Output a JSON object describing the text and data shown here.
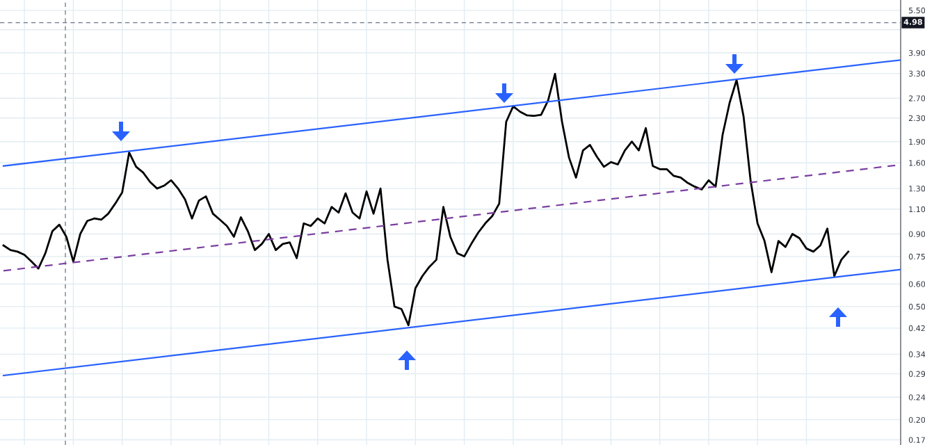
{
  "chart_data": {
    "type": "line",
    "log": "y",
    "grid": true,
    "tick_labels": "y",
    "marker": "none",
    "line_style": "solid",
    "categories": [
      null,
      null,
      null,
      null,
      null,
      null,
      null,
      null,
      null,
      null,
      null,
      null,
      null,
      null,
      null,
      null,
      null,
      null,
      null,
      null,
      null,
      null,
      null,
      null,
      null,
      null,
      null,
      null,
      null,
      null,
      null,
      null,
      null,
      null,
      null,
      null,
      null,
      null,
      null,
      null,
      null,
      null,
      null,
      null,
      null,
      null,
      null,
      null,
      null,
      null,
      null,
      null,
      null,
      null,
      null,
      null,
      null,
      null,
      null,
      null,
      null,
      null,
      null,
      null,
      null,
      null,
      null,
      null,
      null,
      null,
      null,
      null,
      null,
      null,
      null,
      null,
      null,
      null,
      null,
      null,
      null,
      null,
      null,
      null,
      null,
      null,
      null,
      null,
      null,
      null,
      null,
      null,
      null,
      null,
      null,
      null,
      null,
      null,
      null,
      null,
      null,
      null,
      null,
      null,
      null,
      null,
      null,
      null,
      null,
      null,
      null,
      null,
      null,
      null,
      null,
      null,
      null,
      null,
      null,
      null,
      null,
      null
    ],
    "ylim": [
      0.163,
      5.98
    ],
    "yticks": [
      {
        "value": 0.17,
        "label": "0.17"
      },
      {
        "value": 0.2,
        "label": "0.20"
      },
      {
        "value": 0.24,
        "label": "0.24"
      },
      {
        "value": 0.29,
        "label": "0.29"
      },
      {
        "value": 0.34,
        "label": "0.34"
      },
      {
        "value": 0.42,
        "label": "0.42"
      },
      {
        "value": 0.5,
        "label": "0.50"
      },
      {
        "value": 0.6,
        "label": "0.60"
      },
      {
        "value": 0.75,
        "label": "0.75"
      },
      {
        "value": 0.9,
        "label": "0.90"
      },
      {
        "value": 1.1,
        "label": "1.10"
      },
      {
        "value": 1.3,
        "label": "1.30"
      },
      {
        "value": 1.6,
        "label": "1.60"
      },
      {
        "value": 1.9,
        "label": "1.90"
      },
      {
        "value": 2.3,
        "label": "2.30"
      },
      {
        "value": 2.7,
        "label": "2.70"
      },
      {
        "value": 3.3,
        "label": "3.30"
      },
      {
        "value": 3.9,
        "label": "3.90"
      },
      {
        "value": 4.7,
        "label": null
      },
      {
        "value": 5.5,
        "label": "5.50"
      }
    ],
    "series": [
      {
        "color": "#000000",
        "values": [
          0.82,
          0.79,
          0.78,
          0.76,
          0.72,
          0.68,
          0.77,
          0.92,
          0.97,
          0.88,
          0.72,
          0.9,
          1.0,
          1.02,
          1.01,
          1.06,
          1.15,
          1.26,
          1.74,
          1.55,
          1.48,
          1.37,
          1.3,
          1.33,
          1.39,
          1.3,
          1.19,
          1.02,
          1.18,
          1.22,
          1.06,
          1.01,
          0.96,
          0.88,
          1.03,
          0.92,
          0.79,
          0.83,
          0.9,
          0.79,
          0.83,
          0.84,
          0.74,
          0.98,
          0.96,
          1.02,
          0.98,
          1.12,
          1.07,
          1.25,
          1.07,
          1.02,
          1.27,
          1.06,
          1.3,
          0.73,
          0.5,
          0.49,
          0.43,
          0.58,
          0.64,
          0.69,
          0.73,
          1.12,
          0.88,
          0.77,
          0.75,
          0.83,
          0.91,
          0.98,
          1.04,
          1.15,
          2.23,
          2.53,
          2.42,
          2.35,
          2.34,
          2.36,
          2.65,
          3.29,
          2.23,
          1.67,
          1.42,
          1.77,
          1.85,
          1.68,
          1.55,
          1.61,
          1.58,
          1.77,
          1.9,
          1.77,
          2.12,
          1.56,
          1.52,
          1.52,
          1.44,
          1.42,
          1.36,
          1.32,
          1.29,
          1.39,
          1.32,
          2.01,
          2.6,
          3.13,
          2.33,
          1.39,
          0.98,
          0.85,
          0.66,
          0.85,
          0.81,
          0.9,
          0.87,
          0.8,
          0.78,
          0.82,
          0.94,
          0.64,
          0.73,
          0.78
        ]
      },
      {
        "color": "#2962ff",
        "values": [
          1.56,
          null,
          null,
          null,
          null,
          null,
          null,
          null,
          null,
          null,
          null,
          null,
          null,
          null,
          null,
          null,
          null,
          null,
          null,
          null,
          null,
          null,
          null,
          null,
          null,
          null,
          null,
          null,
          null,
          null,
          null,
          null,
          null,
          null,
          null,
          null,
          null,
          null,
          null,
          null,
          null,
          null,
          null,
          null,
          null,
          null,
          null,
          null,
          null,
          null,
          null,
          null,
          null,
          null,
          null,
          null,
          null,
          null,
          null,
          null,
          null,
          null,
          null,
          null,
          null,
          null,
          null,
          null,
          null,
          null,
          null,
          null,
          null,
          null,
          null,
          null,
          null,
          null,
          null,
          null,
          null,
          null,
          null,
          null,
          null,
          null,
          null,
          null,
          null,
          null,
          null,
          null,
          null,
          null,
          null,
          null,
          null,
          null,
          null,
          null,
          null,
          null,
          null,
          null,
          null,
          null,
          null,
          null,
          null,
          null,
          null,
          null,
          null,
          null,
          null,
          null,
          null,
          null,
          null,
          null,
          null,
          3.5
        ]
      },
      {
        "color": "#2962ff",
        "values": [
          0.286,
          null,
          null,
          null,
          null,
          null,
          null,
          null,
          null,
          null,
          null,
          null,
          null,
          null,
          null,
          null,
          null,
          null,
          null,
          null,
          null,
          null,
          null,
          null,
          null,
          null,
          null,
          null,
          null,
          null,
          null,
          null,
          null,
          null,
          null,
          null,
          null,
          null,
          null,
          null,
          null,
          null,
          null,
          null,
          null,
          null,
          null,
          null,
          null,
          null,
          null,
          null,
          null,
          null,
          null,
          null,
          null,
          null,
          null,
          null,
          null,
          null,
          null,
          null,
          null,
          null,
          null,
          null,
          null,
          null,
          null,
          null,
          null,
          null,
          null,
          null,
          null,
          null,
          null,
          null,
          null,
          null,
          null,
          null,
          null,
          null,
          null,
          null,
          null,
          null,
          null,
          null,
          null,
          null,
          null,
          null,
          null,
          null,
          null,
          null,
          null,
          null,
          null,
          null,
          null,
          null,
          null,
          null,
          null,
          null,
          null,
          null,
          null,
          null,
          null,
          null,
          null,
          null,
          null,
          null,
          null,
          0.642
        ]
      },
      {
        "color": "#7b3fa0",
        "line_style": "dashed",
        "values": [
          0.668,
          null,
          null,
          null,
          null,
          null,
          null,
          null,
          null,
          null,
          null,
          null,
          null,
          null,
          null,
          null,
          null,
          null,
          null,
          null,
          null,
          null,
          null,
          null,
          null,
          null,
          null,
          null,
          null,
          null,
          null,
          null,
          null,
          null,
          null,
          null,
          null,
          null,
          null,
          null,
          null,
          null,
          null,
          null,
          null,
          null,
          null,
          null,
          null,
          null,
          null,
          null,
          null,
          null,
          null,
          null,
          null,
          null,
          null,
          null,
          null,
          null,
          null,
          null,
          null,
          null,
          null,
          null,
          null,
          null,
          null,
          null,
          null,
          null,
          null,
          null,
          null,
          null,
          null,
          null,
          null,
          null,
          null,
          null,
          null,
          null,
          null,
          null,
          null,
          null,
          null,
          null,
          null,
          null,
          null,
          null,
          null,
          null,
          null,
          null,
          null,
          null,
          null,
          null,
          null,
          null,
          null,
          null,
          null,
          null,
          null,
          null,
          null,
          null,
          null,
          null,
          null,
          null,
          null,
          null,
          null,
          1.499
        ]
      }
    ],
    "ref_lines": [
      {
        "axis": "y",
        "value": 4.98,
        "label": "4.98",
        "color": "#6a7587",
        "line_style": "dashed"
      }
    ]
  }
}
